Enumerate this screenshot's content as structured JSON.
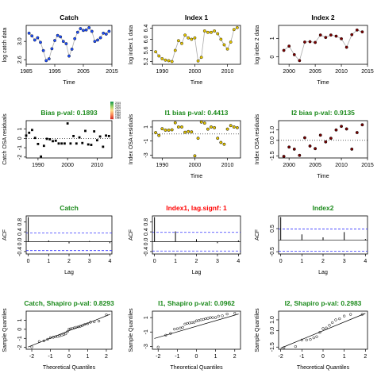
{
  "colors": {
    "catch_point": "#1f4fff",
    "index1_point": "#e8c800",
    "index2_point": "#7a0000",
    "line": "#aaaaaa",
    "title_green": "#1b8a1b",
    "title_red": "#ff0000",
    "conf_dashed": "#3333ff",
    "legend_gradient": [
      "#1a9850",
      "#91cf60",
      "#fee08b",
      "#fc8d59",
      "#d73027"
    ]
  },
  "legend": {
    "labels": [
      "2015",
      "2010",
      "2005",
      "2000",
      "1995",
      "1990",
      "1985"
    ]
  },
  "chart_data": [
    {
      "id": "catch_series",
      "type": "line",
      "title": "Catch",
      "title_color": "black",
      "xlabel": "Time",
      "ylabel": "log catch data",
      "xlim": [
        1985,
        2015
      ],
      "ylim": [
        2.5,
        3.35
      ],
      "xticks": [
        1985,
        1995,
        2005,
        2015
      ],
      "yticks": [
        2.6,
        3.0
      ],
      "point_color_key": "catch_point",
      "x": [
        1986,
        1987,
        1988,
        1989,
        1990,
        1991,
        1992,
        1993,
        1994,
        1995,
        1996,
        1997,
        1998,
        1999,
        2000,
        2001,
        2002,
        2003,
        2004,
        2005,
        2006,
        2007,
        2008,
        2009,
        2010,
        2011,
        2012,
        2013,
        2014
      ],
      "y": [
        3.18,
        3.12,
        3.03,
        3.08,
        2.98,
        2.8,
        2.58,
        2.62,
        2.84,
        3.02,
        3.13,
        3.1,
        3.0,
        2.95,
        2.68,
        2.83,
        3.06,
        3.2,
        3.28,
        3.24,
        3.25,
        3.3,
        3.22,
        3.0,
        3.03,
        3.08,
        3.18,
        3.16,
        3.22
      ]
    },
    {
      "id": "index1_series",
      "type": "line",
      "title": "Index 1",
      "title_color": "black",
      "xlabel": "Time",
      "ylabel": "log index 1 data",
      "xlim": [
        1987,
        2014
      ],
      "ylim": [
        5.1,
        6.5
      ],
      "xticks": [
        1990,
        2000,
        2010
      ],
      "yticks": [
        5.2,
        5.6,
        6.0,
        6.4
      ],
      "point_color_key": "index1_point",
      "x": [
        1988,
        1989,
        1990,
        1991,
        1992,
        1993,
        1994,
        1995,
        1996,
        1997,
        1998,
        1999,
        2000,
        2001,
        2002,
        2003,
        2004,
        2005,
        2006,
        2007,
        2008,
        2009,
        2010,
        2011,
        2012,
        2013
      ],
      "y": [
        5.55,
        5.4,
        5.3,
        5.25,
        5.23,
        5.2,
        5.6,
        5.95,
        5.85,
        6.15,
        6.05,
        6.0,
        6.05,
        5.22,
        5.35,
        6.3,
        6.25,
        6.25,
        6.3,
        6.2,
        6.0,
        5.8,
        5.65,
        5.9,
        6.35,
        6.42
      ]
    },
    {
      "id": "index2_series",
      "type": "line",
      "title": "Index 2",
      "title_color": "black",
      "xlabel": "Time",
      "ylabel": "log index 2 data",
      "xlim": [
        1998,
        2015
      ],
      "ylim": [
        -0.4,
        1.7
      ],
      "xticks": [
        2000,
        2005,
        2010,
        2015
      ],
      "yticks": [
        0.0,
        1.0
      ],
      "point_color_key": "index2_point",
      "x": [
        1999,
        2000,
        2001,
        2002,
        2003,
        2004,
        2005,
        2006,
        2007,
        2008,
        2009,
        2010,
        2011,
        2012,
        2013,
        2014
      ],
      "y": [
        0.35,
        0.58,
        0.12,
        -0.2,
        0.8,
        0.82,
        0.78,
        1.18,
        1.05,
        1.18,
        1.12,
        0.98,
        0.52,
        1.2,
        1.45,
        1.35
      ]
    },
    {
      "id": "catch_resid",
      "type": "scatter",
      "title": "Bias p-val: 0.1893",
      "title_color": "green",
      "xlabel": "",
      "ylabel": "Catch OSA residuals",
      "xlim": [
        1986,
        2015
      ],
      "ylim": [
        -2.1,
        1.9
      ],
      "xticks": [
        1990,
        2000,
        2010
      ],
      "yticks": [
        -2,
        -1,
        0,
        1
      ],
      "hline": 0,
      "gradient_points": true,
      "x": [
        1986,
        1987,
        1988,
        1989,
        1990,
        1991,
        1992,
        1993,
        1994,
        1995,
        1996,
        1997,
        1998,
        1999,
        2000,
        2001,
        2002,
        2003,
        2004,
        2005,
        2006,
        2007,
        2008,
        2009,
        2010,
        2011,
        2012,
        2013,
        2014
      ],
      "y": [
        0.3,
        0.6,
        0.9,
        0.05,
        -0.6,
        -1.95,
        -0.8,
        -0.05,
        -0.1,
        -0.3,
        -0.25,
        -0.55,
        -0.55,
        -0.55,
        1.6,
        -0.55,
        0.25,
        -0.55,
        0.1,
        -0.5,
        0.8,
        -0.65,
        -0.7,
        0.75,
        -0.2,
        0.2,
        -0.9,
        0.3,
        0.25
      ]
    },
    {
      "id": "index1_resid",
      "type": "scatter",
      "title": "I1 bias p-val: 0.4413",
      "title_color": "green",
      "xlabel": "Time",
      "ylabel": "Index OSA residuals",
      "xlim": [
        1987,
        2014
      ],
      "ylim": [
        -3.4,
        1.9
      ],
      "xticks": [
        1990,
        2000,
        2010
      ],
      "yticks": [
        -3,
        -1,
        1
      ],
      "hline": 0,
      "point_color_key": "index1_point",
      "x": [
        1988,
        1989,
        1990,
        1991,
        1992,
        1993,
        1994,
        1995,
        1996,
        1997,
        1998,
        1999,
        2000,
        2001,
        2002,
        2003,
        2004,
        2005,
        2006,
        2007,
        2008,
        2009,
        2010,
        2011,
        2012,
        2013
      ],
      "y": [
        0.2,
        -0.2,
        0.75,
        0.55,
        0.55,
        0.6,
        1.6,
        1.0,
        1.0,
        0.25,
        0.35,
        0.3,
        -3.1,
        -0.6,
        1.7,
        1.55,
        0.7,
        1.0,
        0.9,
        -0.6,
        -1.2,
        -1.45,
        0.7,
        1.2,
        1.0,
        0.9
      ]
    },
    {
      "id": "index2_resid",
      "type": "scatter",
      "title": "I2 bias p-val: 0.9135",
      "title_color": "green",
      "xlabel": "Time",
      "ylabel": "Index OSA residuals",
      "xlim": [
        1998,
        2015
      ],
      "ylim": [
        -1.7,
        1.9
      ],
      "xticks": [
        2000,
        2005,
        2010,
        2015
      ],
      "yticks": [
        -1.5,
        0.0,
        1.0
      ],
      "hline": 0,
      "point_color_key": "index2_point",
      "x": [
        1999,
        2000,
        2001,
        2002,
        2003,
        2004,
        2005,
        2006,
        2007,
        2008,
        2009,
        2010,
        2011,
        2012,
        2013,
        2014
      ],
      "y": [
        -1.55,
        -0.65,
        -0.85,
        -1.45,
        0.25,
        -0.55,
        -0.8,
        0.5,
        -0.15,
        0.2,
        1.0,
        1.35,
        1.1,
        -0.85,
        0.75,
        1.5
      ]
    },
    {
      "id": "catch_acf",
      "type": "bar",
      "title": "Catch",
      "title_color": "green",
      "xlabel": "Lag",
      "ylabel": "ACF",
      "xlim": [
        -0.1,
        4.1
      ],
      "ylim": [
        -0.5,
        1.05
      ],
      "xticks": [
        0,
        1,
        2,
        3,
        4
      ],
      "yticks": [
        -0.4,
        0.0,
        0.4,
        0.8
      ],
      "conf": 0.36,
      "lags": [
        0,
        1,
        2,
        3,
        4
      ],
      "values": [
        1.0,
        0.05,
        -0.07,
        0.03,
        -0.06
      ]
    },
    {
      "id": "index1_acf",
      "type": "bar",
      "title": "Index1, lag.signf: 1",
      "title_color": "red",
      "xlabel": "Lag",
      "ylabel": "ACF",
      "xlim": [
        -0.1,
        4.1
      ],
      "ylim": [
        -0.5,
        1.05
      ],
      "xticks": [
        0,
        1,
        2,
        3,
        4
      ],
      "yticks": [
        -0.4,
        0.0,
        0.4,
        0.8
      ],
      "conf": 0.38,
      "lags": [
        0,
        1,
        2,
        3,
        4
      ],
      "values": [
        1.0,
        0.42,
        0.1,
        -0.06,
        0.05
      ]
    },
    {
      "id": "index2_acf",
      "type": "bar",
      "title": "Index2",
      "title_color": "green",
      "xlabel": "Lag",
      "ylabel": "ACF",
      "xlim": [
        -0.1,
        4.1
      ],
      "ylim": [
        -0.6,
        1.05
      ],
      "xticks": [
        0,
        1,
        2,
        3,
        4
      ],
      "yticks": [
        -0.5,
        0.5
      ],
      "conf": 0.48,
      "lags": [
        0,
        1,
        2,
        3,
        4
      ],
      "values": [
        1.0,
        0.25,
        0.12,
        0.35,
        0.05
      ]
    },
    {
      "id": "catch_qq",
      "type": "scatter",
      "title": "Catch, Shapiro p-val: 0.8293",
      "title_color": "green",
      "xlabel": "Theoretical Quantiles",
      "ylabel": "Sample Quantiles",
      "xlim": [
        -2.3,
        2.3
      ],
      "ylim": [
        -2.2,
        2.0
      ],
      "xticks": [
        -2,
        -1,
        0,
        1,
        2
      ],
      "yticks": [
        -2,
        -1,
        0,
        1
      ],
      "refline": [
        [
          -2.2,
          -1.95
        ],
        [
          2.2,
          1.65
        ]
      ],
      "x": [
        -2.0,
        -1.6,
        -1.35,
        -1.15,
        -1.0,
        -0.85,
        -0.72,
        -0.6,
        -0.5,
        -0.38,
        -0.28,
        -0.18,
        -0.08,
        0.0,
        0.08,
        0.18,
        0.28,
        0.38,
        0.5,
        0.6,
        0.72,
        0.85,
        1.0,
        1.15,
        1.35,
        1.6,
        2.0
      ],
      "y": [
        -1.95,
        -1.35,
        -1.28,
        -1.1,
        -0.92,
        -0.88,
        -0.82,
        -0.78,
        -0.72,
        -0.65,
        -0.58,
        -0.5,
        -0.25,
        0.02,
        0.05,
        0.1,
        0.15,
        0.22,
        0.28,
        0.33,
        0.42,
        0.55,
        0.62,
        0.78,
        0.82,
        0.9,
        1.6
      ]
    },
    {
      "id": "index1_qq",
      "type": "scatter",
      "title": "I1, Shapiro p-val: 0.0962",
      "title_color": "green",
      "xlabel": "Theoretical Quantiles",
      "ylabel": "Sample Quantiles",
      "xlim": [
        -2.3,
        2.3
      ],
      "ylim": [
        -3.4,
        1.9
      ],
      "xticks": [
        -2,
        -1,
        0,
        1,
        2
      ],
      "yticks": [
        -3,
        -1,
        1
      ],
      "refline": [
        [
          -2.2,
          -1.9
        ],
        [
          2.2,
          1.5
        ]
      ],
      "x": [
        -2.0,
        -1.6,
        -1.35,
        -1.15,
        -1.0,
        -0.85,
        -0.72,
        -0.6,
        -0.48,
        -0.36,
        -0.24,
        -0.12,
        0.0,
        0.12,
        0.24,
        0.36,
        0.48,
        0.6,
        0.72,
        0.85,
        1.0,
        1.15,
        1.35,
        1.6,
        2.0
      ],
      "y": [
        -3.1,
        -1.45,
        -1.2,
        -0.6,
        -0.55,
        -0.45,
        -0.35,
        0.1,
        0.2,
        0.25,
        0.3,
        0.35,
        0.55,
        0.6,
        0.7,
        0.75,
        0.85,
        0.9,
        1.0,
        1.0,
        1.0,
        1.2,
        1.25,
        1.5,
        1.6
      ]
    },
    {
      "id": "index2_qq",
      "type": "scatter",
      "title": "I2, Shapiro p-val: 0.2983",
      "title_color": "green",
      "xlabel": "Theoretical Quantiles",
      "ylabel": "Sample Quantiles",
      "xlim": [
        -2.1,
        2.1
      ],
      "ylim": [
        -1.7,
        1.8
      ],
      "xticks": [
        -2,
        -1,
        0,
        1,
        2
      ],
      "yticks": [
        -1.5,
        0.0,
        1.0
      ],
      "refline": [
        [
          -2.0,
          -1.6
        ],
        [
          2.0,
          1.6
        ]
      ],
      "x": [
        -1.85,
        -1.3,
        -1.0,
        -0.78,
        -0.6,
        -0.44,
        -0.3,
        -0.15,
        0.0,
        0.15,
        0.3,
        0.44,
        0.6,
        0.78,
        1.0,
        1.3,
        1.85
      ],
      "y": [
        -1.55,
        -1.45,
        -0.85,
        -0.85,
        -0.8,
        -0.65,
        -0.55,
        -0.15,
        0.2,
        0.25,
        0.5,
        0.75,
        1.0,
        1.1,
        1.35,
        1.5,
        1.5
      ]
    }
  ]
}
